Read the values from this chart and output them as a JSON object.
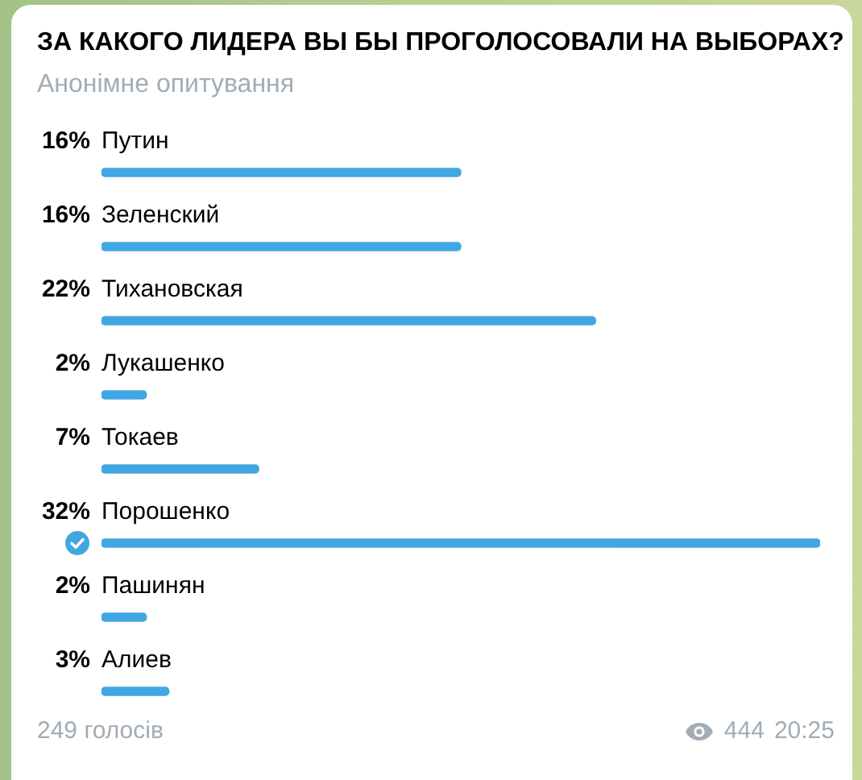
{
  "chart_data": {
    "type": "bar",
    "orientation": "horizontal",
    "title": "ЗА КАКОГО ЛИДЕРА ВЫ БЫ ПРОГОЛОСОВАЛИ НА ВЫБОРАХ?",
    "subtitle": "Анонімне опитування",
    "categories": [
      "Путин",
      "Зеленский",
      "Тихановская",
      "Лукашенко",
      "Токаев",
      "Порошенко",
      "Пашинян",
      "Алиев"
    ],
    "values": [
      16,
      16,
      22,
      2,
      7,
      32,
      2,
      3
    ],
    "value_labels": [
      "16%",
      "16%",
      "22%",
      "2%",
      "7%",
      "32%",
      "2%",
      "3%"
    ],
    "color": "#40a7e3",
    "tick_labels": "y",
    "legend": false,
    "annotations": [
      "249 голосів",
      "444",
      "20:25"
    ]
  }
}
